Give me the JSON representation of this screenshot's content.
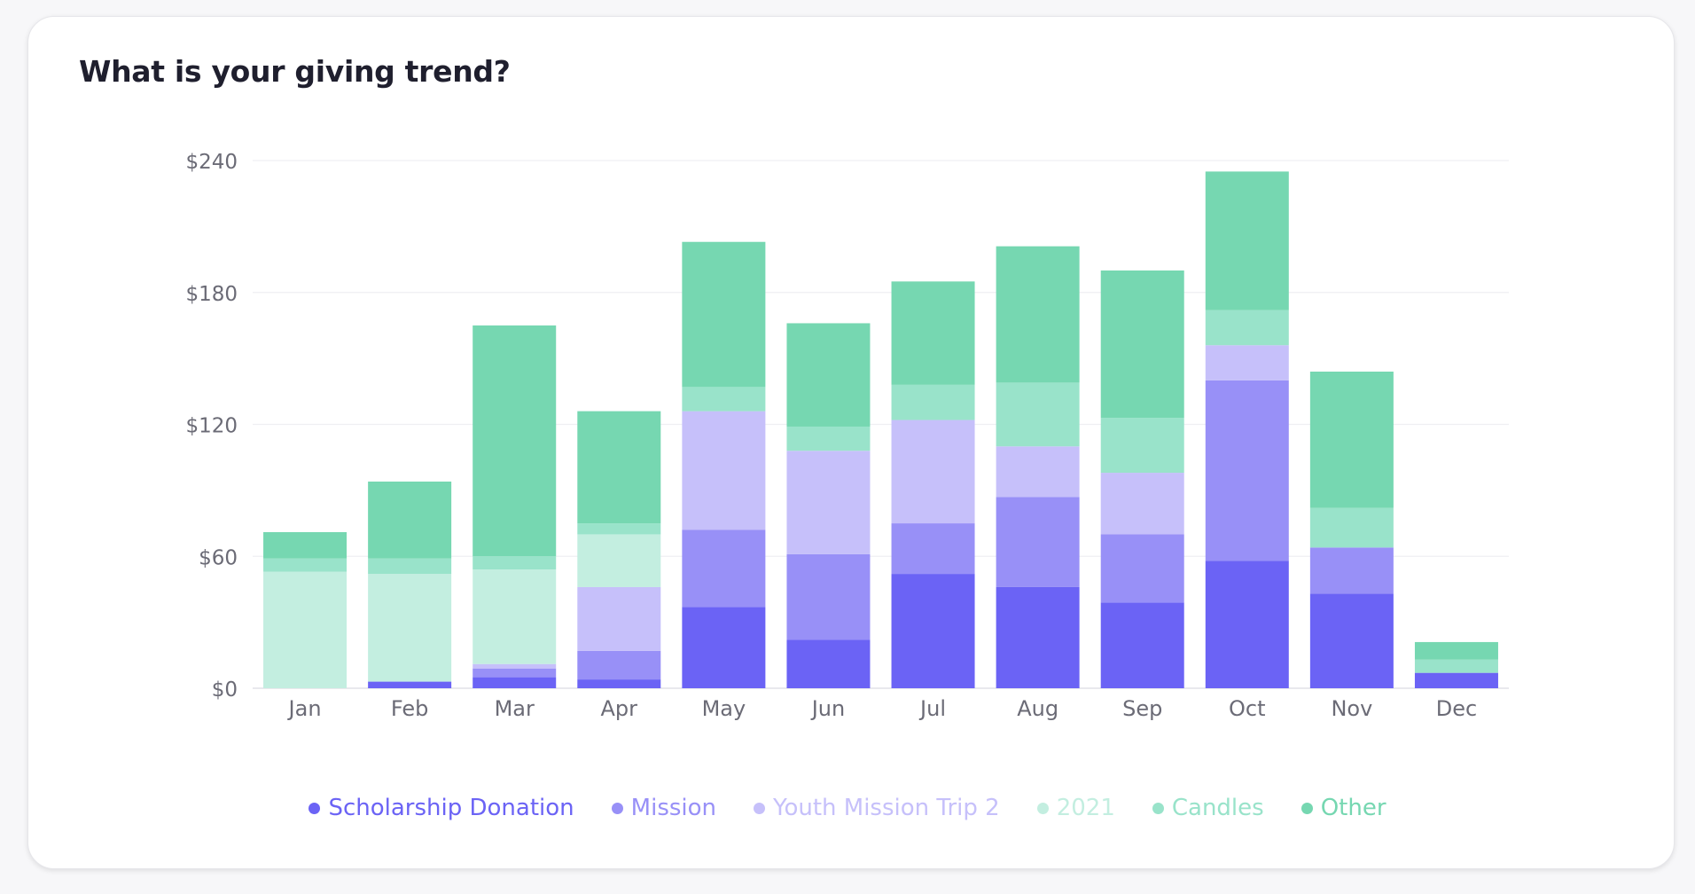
{
  "card": {
    "title": "What is your giving trend?"
  },
  "chart_data": {
    "type": "bar",
    "stacked": true,
    "title": "What is your giving trend?",
    "categories": [
      "Jan",
      "Feb",
      "Mar",
      "Apr",
      "May",
      "Jun",
      "Jul",
      "Aug",
      "Sep",
      "Oct",
      "Nov",
      "Dec"
    ],
    "y_ticks": [
      "$0",
      "$60",
      "$120",
      "$180",
      "$240"
    ],
    "ylim": [
      0,
      240
    ],
    "grid": true,
    "legend_position": "bottom",
    "series": [
      {
        "name": "Scholarship Donation",
        "color": "#6b63f5",
        "values": [
          0,
          3,
          5,
          4,
          37,
          22,
          52,
          46,
          39,
          58,
          43,
          7
        ]
      },
      {
        "name": "Mission",
        "color": "#9890f7",
        "values": [
          0,
          0,
          4,
          13,
          35,
          39,
          23,
          41,
          31,
          82,
          21,
          0
        ]
      },
      {
        "name": "Youth Mission Trip 2",
        "color": "#c6c0fa",
        "values": [
          0,
          0,
          2,
          29,
          54,
          47,
          47,
          23,
          28,
          16,
          0,
          0
        ]
      },
      {
        "name": "2021",
        "color": "#c3eee0",
        "values": [
          53,
          49,
          43,
          24,
          0,
          0,
          0,
          0,
          0,
          0,
          0,
          0
        ]
      },
      {
        "name": "Candles",
        "color": "#99e3ca",
        "values": [
          6,
          7,
          6,
          5,
          11,
          11,
          16,
          29,
          25,
          16,
          18,
          6
        ]
      },
      {
        "name": "Other",
        "color": "#76d7b1",
        "values": [
          12,
          35,
          105,
          51,
          66,
          47,
          47,
          62,
          67,
          63,
          62,
          8
        ]
      }
    ]
  },
  "legend": [
    {
      "label": "Scholarship Donation",
      "text_color": "#6b63f5",
      "dot_color": "#6b63f5"
    },
    {
      "label": "Mission",
      "text_color": "#9890f7",
      "dot_color": "#9890f7"
    },
    {
      "label": "Youth Mission Trip 2",
      "text_color": "#c6c0fa",
      "dot_color": "#c6c0fa"
    },
    {
      "label": "2021",
      "text_color": "#c3eee0",
      "dot_color": "#c3eee0"
    },
    {
      "label": "Candles",
      "text_color": "#99e3ca",
      "dot_color": "#99e3ca"
    },
    {
      "label": "Other",
      "text_color": "#76d7b1",
      "dot_color": "#76d7b1"
    }
  ]
}
